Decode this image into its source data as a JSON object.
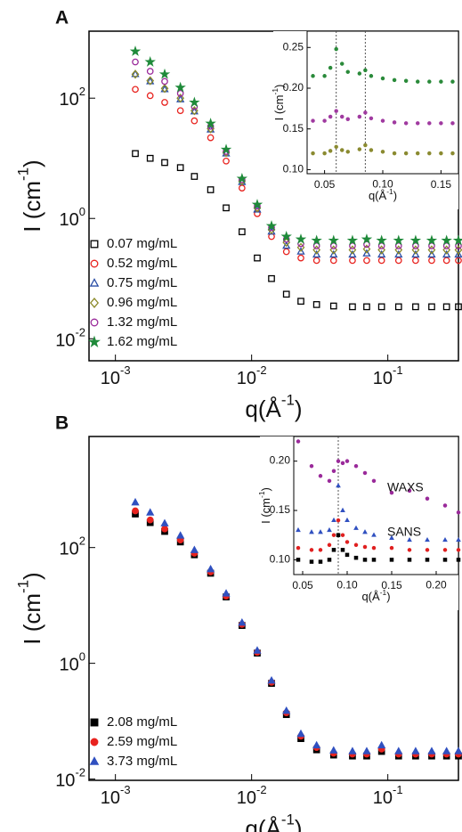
{
  "chart_data": [
    {
      "type": "scatter",
      "label": "A",
      "xscale": "log",
      "yscale": "log",
      "xlabel": [
        "q(Å",
        "-1",
        ")"
      ],
      "ylabel": [
        "I (cm",
        "-1",
        ")"
      ],
      "xlim": [
        0.00064,
        0.33
      ],
      "ylim": [
        0.0043,
        1300
      ],
      "xticks": [
        {
          "value": 0.001,
          "label": "10",
          "exponent": "-3"
        },
        {
          "value": 0.01,
          "label": "10",
          "exponent": "-2"
        },
        {
          "value": 0.1,
          "label": "10",
          "exponent": "-1"
        }
      ],
      "yticks": [
        {
          "value": 0.01,
          "label": "10",
          "exponent": "-2"
        },
        {
          "value": 1,
          "label": "10",
          "exponent": "0"
        },
        {
          "value": 100,
          "label": "10",
          "exponent": "2"
        }
      ],
      "legend": "lower left",
      "x": [
        0.0014,
        0.0018,
        0.0023,
        0.003,
        0.0038,
        0.005,
        0.0065,
        0.0085,
        0.011,
        0.014,
        0.018,
        0.023,
        0.03,
        0.04,
        0.055,
        0.07,
        0.09,
        0.12,
        0.16,
        0.21,
        0.27,
        0.33
      ],
      "series": [
        {
          "name": "0.07 mg/mL",
          "color": "#000000",
          "marker": "square",
          "filled": false,
          "values": [
            12,
            10,
            8.5,
            7,
            5,
            3,
            1.5,
            0.6,
            0.22,
            0.1,
            0.055,
            0.042,
            0.037,
            0.035,
            0.034,
            0.034,
            0.034,
            0.034,
            0.034,
            0.034,
            0.034,
            0.034
          ]
        },
        {
          "name": "0.52 mg/mL",
          "color": "#e8231f",
          "marker": "circle",
          "filled": false,
          "values": [
            140,
            110,
            85,
            62,
            42,
            22,
            9,
            3.2,
            1.2,
            0.5,
            0.28,
            0.22,
            0.2,
            0.2,
            0.2,
            0.2,
            0.2,
            0.2,
            0.2,
            0.2,
            0.2,
            0.2
          ]
        },
        {
          "name": "0.75 mg/mL",
          "color": "#2b4fa6",
          "marker": "triangle",
          "filled": false,
          "values": [
            250,
            190,
            140,
            95,
            60,
            30,
            12,
            4,
            1.4,
            0.6,
            0.35,
            0.28,
            0.25,
            0.25,
            0.25,
            0.26,
            0.25,
            0.25,
            0.25,
            0.25,
            0.25,
            0.25
          ]
        },
        {
          "name": "0.96 mg/mL",
          "color": "#8c8a2a",
          "marker": "diamond",
          "filled": false,
          "values": [
            250,
            195,
            145,
            100,
            62,
            31,
            12.5,
            4.2,
            1.5,
            0.65,
            0.4,
            0.33,
            0.3,
            0.3,
            0.3,
            0.31,
            0.3,
            0.3,
            0.3,
            0.3,
            0.3,
            0.3
          ]
        },
        {
          "name": "1.32 mg/mL",
          "color": "#9a2a9a",
          "marker": "circle",
          "filled": false,
          "values": [
            400,
            280,
            190,
            120,
            72,
            34,
            13,
            4.4,
            1.6,
            0.7,
            0.45,
            0.38,
            0.35,
            0.35,
            0.35,
            0.37,
            0.35,
            0.35,
            0.35,
            0.35,
            0.35,
            0.35
          ]
        },
        {
          "name": "1.62 mg/mL",
          "color": "#1f8a3a",
          "marker": "star",
          "filled": true,
          "values": [
            600,
            400,
            250,
            150,
            85,
            38,
            14,
            4.6,
            1.7,
            0.75,
            0.5,
            0.45,
            0.43,
            0.43,
            0.43,
            0.45,
            0.43,
            0.43,
            0.43,
            0.43,
            0.43,
            0.43
          ]
        }
      ]
    },
    {
      "type": "scatter",
      "xscale": "linear",
      "yscale": "linear",
      "xlabel": [
        "q(Å",
        "-1",
        ")"
      ],
      "ylabel": [
        "I (cm",
        "-1",
        ")"
      ],
      "xlim": [
        0.035,
        0.165
      ],
      "ylim": [
        0.095,
        0.27
      ],
      "xticks": [
        0.05,
        {
          "value": 0.1,
          "label": "0.10"
        },
        0.15
      ],
      "yticks": [
        {
          "value": 0.1,
          "label": "0.10"
        },
        0.15,
        {
          "value": 0.2,
          "label": "0.20"
        },
        0.25
      ],
      "vlines": [
        0.06,
        0.085
      ],
      "x": [
        0.04,
        0.05,
        0.055,
        0.06,
        0.065,
        0.07,
        0.08,
        0.085,
        0.09,
        0.1,
        0.11,
        0.12,
        0.13,
        0.14,
        0.15,
        0.16
      ],
      "series": [
        {
          "color": "#2a8a3a",
          "marker": "circle",
          "filled": true,
          "values": [
            0.215,
            0.215,
            0.225,
            0.248,
            0.23,
            0.22,
            0.218,
            0.222,
            0.215,
            0.212,
            0.21,
            0.209,
            0.208,
            0.208,
            0.208,
            0.208
          ]
        },
        {
          "color": "#a03aa0",
          "marker": "circle",
          "filled": true,
          "values": [
            0.16,
            0.16,
            0.165,
            0.172,
            0.165,
            0.162,
            0.165,
            0.17,
            0.163,
            0.16,
            0.158,
            0.157,
            0.157,
            0.157,
            0.157,
            0.157
          ]
        },
        {
          "color": "#8a8a30",
          "marker": "circle",
          "filled": true,
          "values": [
            0.12,
            0.12,
            0.123,
            0.128,
            0.124,
            0.122,
            0.125,
            0.13,
            0.124,
            0.122,
            0.12,
            0.12,
            0.12,
            0.12,
            0.12,
            0.12
          ]
        }
      ]
    },
    {
      "type": "scatter",
      "label": "B",
      "xscale": "log",
      "yscale": "log",
      "xlabel": [
        "q(Å",
        "-1",
        ")"
      ],
      "ylabel": [
        "I (cm",
        "-1",
        ")"
      ],
      "xlim": [
        0.00064,
        0.33
      ],
      "ylim": [
        0.0095,
        8300
      ],
      "xticks": [
        {
          "value": 0.001,
          "label": "10",
          "exponent": "-3"
        },
        {
          "value": 0.01,
          "label": "10",
          "exponent": "-2"
        },
        {
          "value": 0.1,
          "label": "10",
          "exponent": "-1"
        }
      ],
      "yticks": [
        {
          "value": 0.01,
          "label": "10",
          "exponent": "-2"
        },
        {
          "value": 1,
          "label": "10",
          "exponent": "0"
        },
        {
          "value": 100,
          "label": "10",
          "exponent": "2"
        }
      ],
      "legend": "lower left",
      "x": [
        0.0014,
        0.0018,
        0.0023,
        0.003,
        0.0038,
        0.005,
        0.0065,
        0.0085,
        0.011,
        0.014,
        0.018,
        0.023,
        0.03,
        0.04,
        0.055,
        0.07,
        0.09,
        0.12,
        0.16,
        0.21,
        0.27,
        0.33
      ],
      "series": [
        {
          "name": "2.08 mg/mL",
          "color": "#000000",
          "marker": "square",
          "filled": true,
          "values": [
            380,
            270,
            190,
            125,
            75,
            36,
            14,
            4.5,
            1.5,
            0.45,
            0.13,
            0.05,
            0.032,
            0.026,
            0.025,
            0.025,
            0.03,
            0.025,
            0.025,
            0.025,
            0.025,
            0.025
          ]
        },
        {
          "name": "2.59 mg/mL",
          "color": "#e8231f",
          "marker": "circle",
          "filled": true,
          "values": [
            430,
            300,
            210,
            135,
            80,
            38,
            14.5,
            4.7,
            1.55,
            0.47,
            0.14,
            0.055,
            0.035,
            0.028,
            0.027,
            0.027,
            0.033,
            0.027,
            0.027,
            0.027,
            0.027,
            0.027
          ]
        },
        {
          "name": "3.73 mg/mL",
          "color": "#3050c0",
          "marker": "triangle",
          "filled": true,
          "values": [
            600,
            400,
            260,
            160,
            90,
            42,
            16,
            5,
            1.65,
            0.5,
            0.15,
            0.06,
            0.038,
            0.031,
            0.03,
            0.03,
            0.038,
            0.03,
            0.03,
            0.03,
            0.03,
            0.03
          ]
        }
      ]
    },
    {
      "type": "scatter",
      "xscale": "linear",
      "yscale": "linear",
      "xlabel": [
        "q(Å",
        "-1",
        ")"
      ],
      "ylabel": [
        "I (cm",
        "-1",
        ")"
      ],
      "xlim": [
        0.04,
        0.225
      ],
      "ylim": [
        0.085,
        0.225
      ],
      "xticks": [
        0.05,
        {
          "value": 0.1,
          "label": "0.10"
        },
        0.15,
        {
          "value": 0.2,
          "label": "0.20"
        }
      ],
      "yticks": [
        {
          "value": 0.1,
          "label": "0.10"
        },
        0.15,
        {
          "value": 0.2,
          "label": "0.20"
        }
      ],
      "vlines": [
        0.09
      ],
      "annotations": [
        "WAXS",
        "SANS"
      ],
      "x": [
        0.045,
        0.06,
        0.07,
        0.08,
        0.085,
        0.09,
        0.095,
        0.1,
        0.11,
        0.12,
        0.13,
        0.15,
        0.17,
        0.19,
        0.21,
        0.225
      ],
      "series": [
        {
          "color": "#9a2a9a",
          "marker": "circle",
          "filled": true,
          "values": [
            0.22,
            0.195,
            0.185,
            0.18,
            0.19,
            0.2,
            0.198,
            0.2,
            0.195,
            0.188,
            0.18,
            0.168,
            0.17,
            0.162,
            0.155,
            0.148
          ]
        },
        {
          "color": "#3050c0",
          "marker": "triangle",
          "filled": true,
          "values": [
            0.13,
            0.128,
            0.128,
            0.13,
            0.14,
            0.175,
            0.15,
            0.14,
            0.132,
            0.128,
            0.125,
            0.122,
            0.12,
            0.12,
            0.12,
            0.12
          ]
        },
        {
          "color": "#e02020",
          "marker": "circle",
          "filled": true,
          "values": [
            0.112,
            0.11,
            0.11,
            0.115,
            0.125,
            0.14,
            0.125,
            0.118,
            0.115,
            0.113,
            0.112,
            0.112,
            0.11,
            0.11,
            0.11,
            0.11
          ]
        },
        {
          "color": "#000000",
          "marker": "square",
          "filled": true,
          "values": [
            0.1,
            0.098,
            0.098,
            0.1,
            0.11,
            0.125,
            0.11,
            0.105,
            0.102,
            0.1,
            0.1,
            0.1,
            0.1,
            0.1,
            0.1,
            0.1
          ]
        }
      ]
    }
  ]
}
